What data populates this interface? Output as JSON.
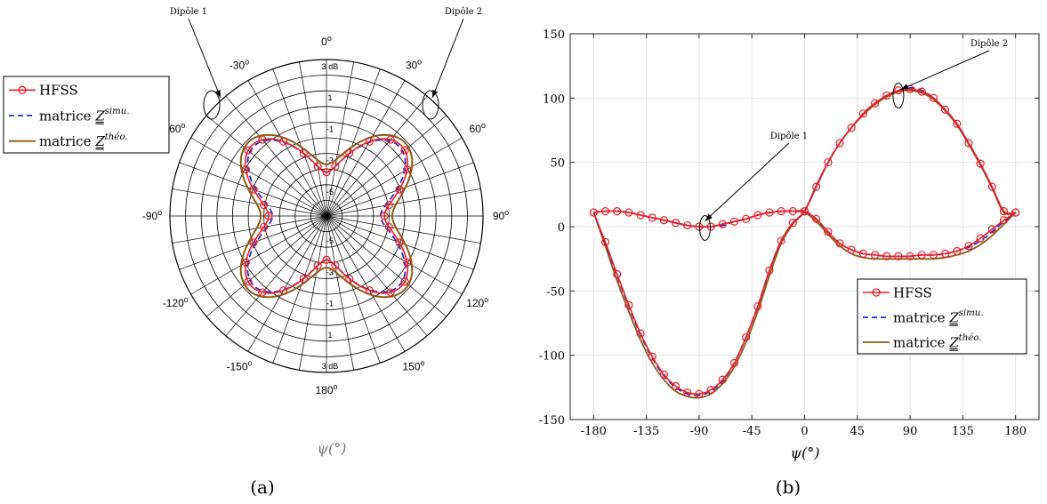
{
  "figure": {
    "panel_a_label": "(a)",
    "panel_b_label": "(b)"
  },
  "colors": {
    "hfss": "#ee1c24",
    "simu": "#1f2ccf",
    "theo": "#8b5a14",
    "grid_polar": "#000000",
    "grid_cart": "#e3e3e3",
    "axes": "#222222"
  },
  "legend": {
    "hfss": "HFSS",
    "simu_prefix": "matrice",
    "simu_symbol": "Z",
    "simu_sup": "simu.",
    "theo_prefix": "matrice",
    "theo_symbol": "Z",
    "theo_sup": "théo."
  },
  "chart_data": [
    {
      "type": "polar",
      "panel": "a",
      "xlabel": "ψ(°)",
      "angle_ticks_deg": [
        0,
        30,
        60,
        90,
        120,
        150,
        180,
        -150,
        -120,
        -90,
        -60,
        -30
      ],
      "angle_tick_labels": [
        "0°",
        "30°",
        "60°",
        "90°",
        "120°",
        "150°",
        "180°",
        "-150°",
        "-120°",
        "-90°",
        "-60°",
        "-30°"
      ],
      "radial_range_db": [
        -7,
        3
      ],
      "radial_tick_labels": [
        "3 dB",
        "1",
        "-1",
        "-3",
        "-5"
      ],
      "radial_tick_values_db": [
        3,
        1,
        -1,
        -3,
        -5
      ],
      "legend_position": "left",
      "annotations": [
        {
          "text": "Dipôle 1",
          "target_psi_deg": -35,
          "target_db": 0.2
        },
        {
          "text": "Dipôle 2",
          "target_psi_deg": 35,
          "target_db": 0.2
        }
      ],
      "series": [
        {
          "name": "HFSS",
          "key": "hfss",
          "style": "solid-circles",
          "description_db": "lobe max ≈ 0 dB at ±40°, ≈ 0 dB at ±140°, ≈ -3.6 dB at 0° and 180°, ≈ -4.6 dB at ±90°"
        },
        {
          "name": "matrice Z simu.",
          "key": "simu",
          "style": "dashed"
        },
        {
          "name": "matrice Z théo.",
          "key": "theo",
          "style": "solid"
        }
      ]
    },
    {
      "type": "line",
      "panel": "b",
      "xlabel": "ψ(°)",
      "ylabel": "",
      "xlim": [
        -200,
        200
      ],
      "ylim": [
        -150,
        150
      ],
      "xticks": [
        -180,
        -135,
        -90,
        -45,
        0,
        45,
        90,
        135,
        180
      ],
      "yticks": [
        -150,
        -100,
        -50,
        0,
        50,
        100,
        150
      ],
      "grid": true,
      "legend_position": "lower-right",
      "annotations": [
        {
          "text": "Dipôle 1",
          "target_x": -88,
          "target_y": 3
        },
        {
          "text": "Dipôle 2",
          "target_x": 85,
          "target_y": 108
        }
      ],
      "x": [
        -180,
        -170,
        -160,
        -150,
        -140,
        -130,
        -120,
        -110,
        -100,
        -90,
        -80,
        -70,
        -60,
        -50,
        -40,
        -30,
        -20,
        -10,
        0,
        10,
        20,
        30,
        40,
        50,
        60,
        70,
        80,
        90,
        100,
        110,
        120,
        130,
        140,
        150,
        160,
        170,
        180
      ],
      "series": [
        {
          "name": "HFSS",
          "key": "hfss",
          "group": "Dipôle 2",
          "values": [
            11,
            -12,
            -37,
            -61,
            -83,
            -101,
            -115,
            -124,
            -129,
            -130,
            -127,
            -119,
            -106,
            -86,
            -62,
            -34,
            -11,
            3,
            12,
            31,
            50,
            65,
            77,
            88,
            96,
            102,
            106,
            107,
            105,
            100,
            91,
            80,
            65,
            49,
            31,
            12,
            11
          ]
        },
        {
          "name": "HFSS",
          "key": "hfss",
          "group": "Dipôle 1",
          "values": [
            11,
            12,
            12,
            11,
            9,
            7,
            5,
            3,
            1,
            0,
            0,
            2,
            4,
            6,
            9,
            11,
            12,
            12,
            12,
            6,
            -4,
            -13,
            -18,
            -21,
            -22,
            -23,
            -23,
            -23,
            -22,
            -22,
            -21,
            -19,
            -15,
            -9,
            -2,
            5,
            11
          ]
        },
        {
          "name": "matrice Z simu.",
          "key": "simu",
          "group": "Dipôle 2",
          "values": [
            11,
            -13,
            -38,
            -62,
            -84,
            -102,
            -116,
            -125,
            -130,
            -131,
            -128,
            -120,
            -106,
            -86,
            -62,
            -34,
            -11,
            3,
            12,
            31,
            50,
            65,
            77,
            88,
            96,
            102,
            106,
            108,
            106,
            100,
            91,
            80,
            65,
            49,
            31,
            12,
            11
          ]
        },
        {
          "name": "matrice Z simu.",
          "key": "simu",
          "group": "Dipôle 1",
          "values": [
            11,
            12,
            12,
            11,
            9,
            7,
            5,
            3,
            1,
            0,
            0,
            1,
            4,
            6,
            9,
            11,
            12,
            12,
            12,
            6,
            -4,
            -13,
            -18,
            -21,
            -22,
            -23,
            -23,
            -23,
            -22,
            -22,
            -21,
            -19,
            -16,
            -11,
            -4,
            4,
            11
          ]
        },
        {
          "name": "matrice Z théo.",
          "key": "theo",
          "group": "Dipôle 2",
          "values": [
            11,
            -15,
            -42,
            -66,
            -88,
            -106,
            -119,
            -128,
            -132,
            -133,
            -130,
            -122,
            -109,
            -90,
            -66,
            -38,
            -13,
            2,
            12,
            32,
            50,
            65,
            77,
            87,
            95,
            101,
            105,
            106,
            104,
            99,
            90,
            79,
            64,
            48,
            30,
            11,
            11
          ]
        },
        {
          "name": "matrice Z théo.",
          "key": "theo",
          "group": "Dipôle 1",
          "values": [
            11,
            12,
            12,
            11,
            9,
            7,
            5,
            3,
            1,
            0,
            0,
            2,
            4,
            6,
            9,
            11,
            12,
            12,
            11,
            4,
            -6,
            -15,
            -21,
            -24,
            -25,
            -25,
            -25,
            -25,
            -25,
            -25,
            -24,
            -22,
            -19,
            -14,
            -7,
            2,
            11
          ]
        }
      ]
    }
  ]
}
